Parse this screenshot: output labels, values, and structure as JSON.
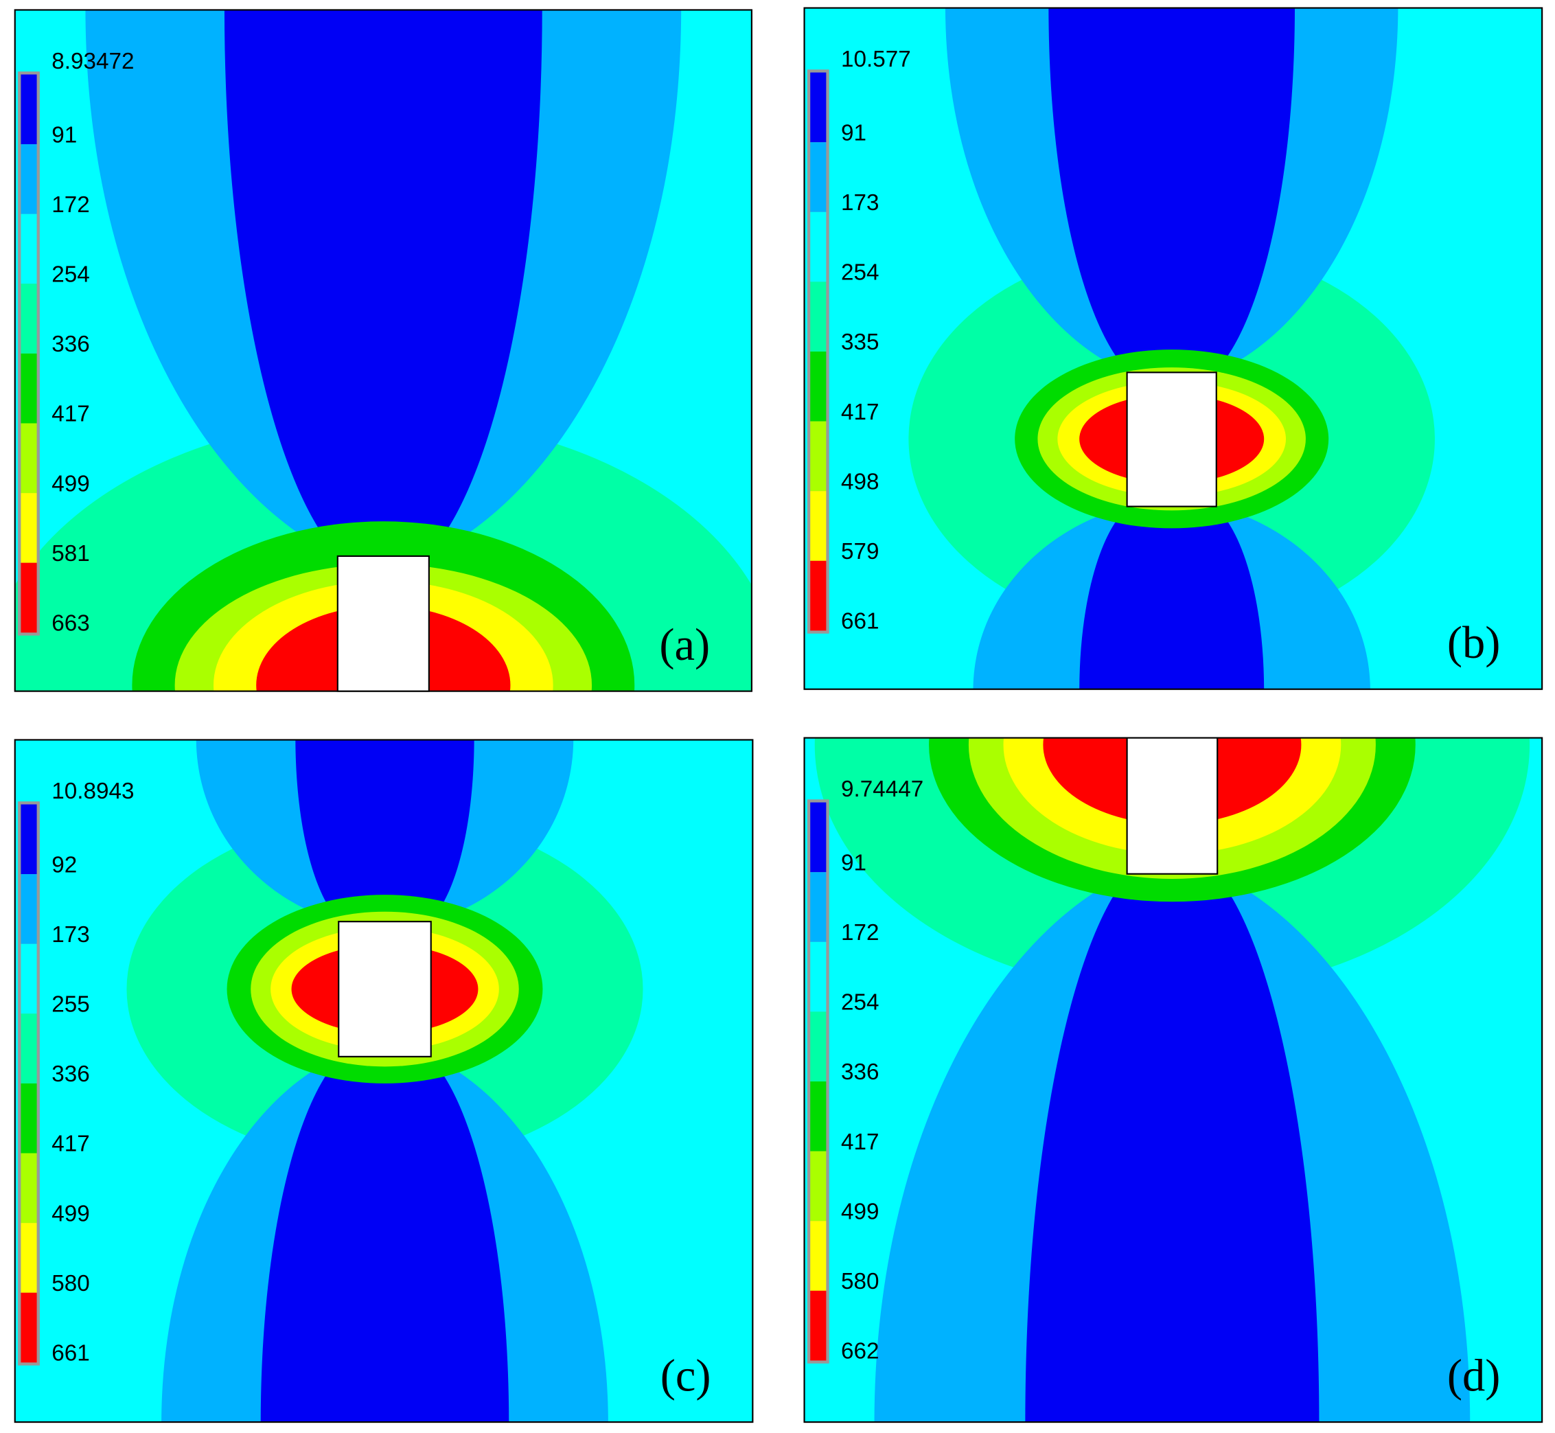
{
  "panels": [
    {
      "label": "(a)",
      "colorbar": [
        "8.93472",
        "91",
        "172",
        "254",
        "336",
        "417",
        "499",
        "581",
        "663"
      ]
    },
    {
      "label": "(b)",
      "colorbar": [
        "10.577",
        "91",
        "173",
        "254",
        "335",
        "417",
        "498",
        "579",
        "661"
      ]
    },
    {
      "label": "(c)",
      "colorbar": [
        "10.8943",
        "92",
        "173",
        "255",
        "336",
        "417",
        "499",
        "580",
        "661"
      ]
    },
    {
      "label": "(d)",
      "colorbar": [
        "9.74447",
        "91",
        "172",
        "254",
        "336",
        "417",
        "499",
        "580",
        "662"
      ]
    }
  ]
}
